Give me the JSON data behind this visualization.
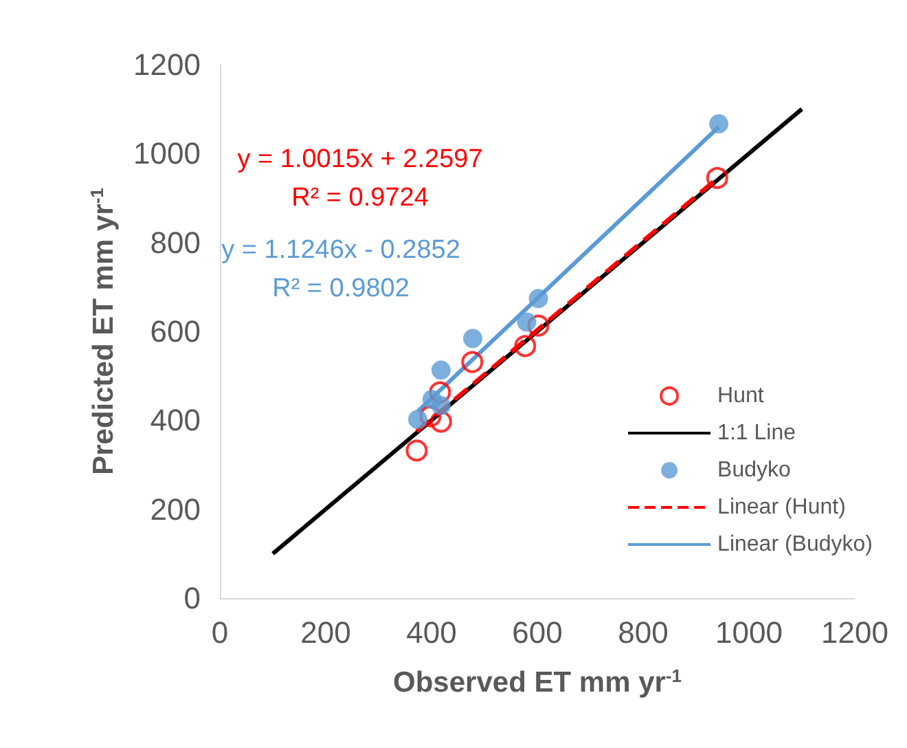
{
  "chart_data": {
    "type": "scatter",
    "xlabel": "Observed ET mm yr$^{-1}$",
    "ylabel": "Predicted ET mm yr$^{-1}$",
    "xlim": [
      0,
      1200
    ],
    "xticks": [
      0,
      200,
      400,
      600,
      800,
      1000,
      1200
    ],
    "ylim": [
      0,
      1200
    ],
    "yticks": [
      0,
      200,
      400,
      600,
      800,
      1000,
      1200
    ],
    "grid": false,
    "legend": "bottom right",
    "series": [
      {
        "name": "Hunt",
        "marker": "circle",
        "color": "#ff0000",
        "x": [
          372,
          398,
          418,
          416,
          477,
          577,
          602,
          940
        ],
        "values": [
          332,
          409,
          397,
          463,
          531,
          567,
          613,
          945
        ]
      },
      {
        "name": "1:1 Line",
        "type": "line",
        "marker": "none",
        "color": "#000000",
        "line_style": "solid",
        "x": [
          100,
          1100
        ],
        "values": [
          100,
          1100
        ]
      },
      {
        "name": "Budyko",
        "marker": "circle",
        "color": "#5b9bd5",
        "x": [
          374,
          401,
          418,
          418,
          478,
          580,
          602,
          943
        ],
        "values": [
          402,
          447,
          433,
          513,
          584,
          621,
          674,
          1067
        ]
      },
      {
        "name": "Linear (Hunt)",
        "type": "line",
        "marker": "none",
        "color": "#ff0000",
        "line_style": "dashed",
        "x": [
          372,
          940
        ],
        "values": [
          375,
          944
        ]
      },
      {
        "name": "Linear (Budyko)",
        "type": "line",
        "marker": "none",
        "color": "#5b9bd5",
        "line_style": "solid",
        "x": [
          374,
          943
        ],
        "values": [
          420,
          1060
        ]
      }
    ],
    "annotations": [
      "y = 1.0015x + 2.2597",
      "R² = 0.9724",
      "y = 1.1246x - 0.2852",
      "R² = 0.9802"
    ]
  }
}
